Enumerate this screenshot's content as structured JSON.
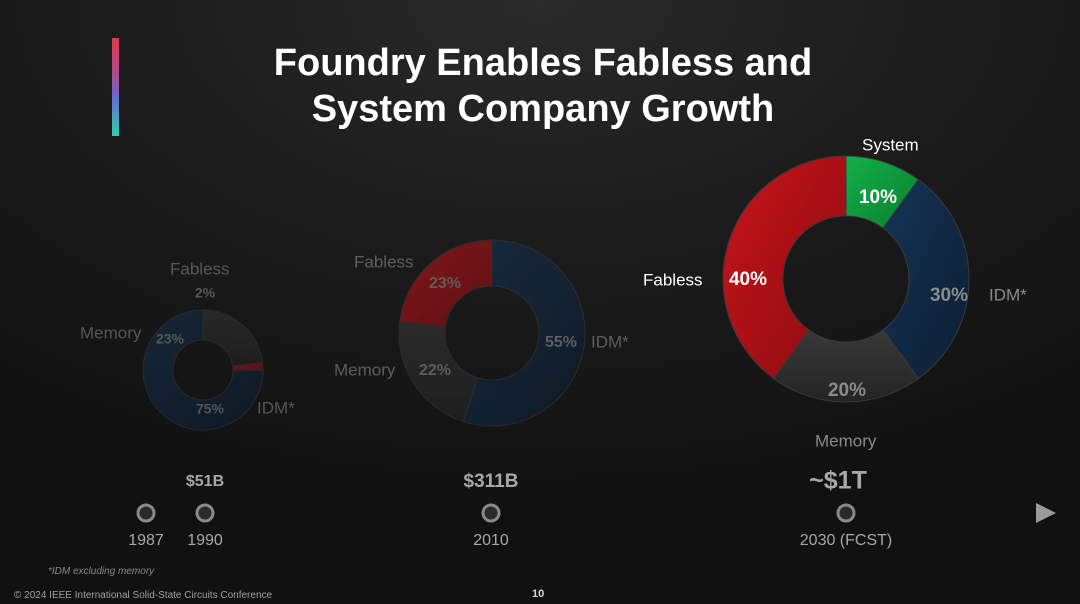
{
  "title": {
    "line1": "Foundry Enables Fabless and",
    "line2": "System Company Growth"
  },
  "chart_data": {
    "type": "pie",
    "subtype": "donut",
    "title": "Foundry Enables Fabless and System Company Growth",
    "categories": [
      "IDM*",
      "Fabless",
      "Memory",
      "System"
    ],
    "colors": {
      "IDM*": "#0e2942",
      "Fabless": "#b00f14",
      "Memory": "#2e2e2e",
      "System": "#0d9a3a"
    },
    "series": [
      {
        "name": "1990",
        "market_size": "$51B",
        "slices": [
          {
            "label": "IDM*",
            "value": 75,
            "text": "75%"
          },
          {
            "label": "Memory",
            "value": 23,
            "text": "23%"
          },
          {
            "label": "Fabless",
            "value": 2,
            "text": "2%"
          }
        ]
      },
      {
        "name": "2010",
        "market_size": "$311B",
        "slices": [
          {
            "label": "IDM*",
            "value": 55,
            "text": "55%"
          },
          {
            "label": "Memory",
            "value": 22,
            "text": "22%"
          },
          {
            "label": "Fabless",
            "value": 23,
            "text": "23%"
          }
        ]
      },
      {
        "name": "2030 (FCST)",
        "market_size": "~$1T",
        "slices": [
          {
            "label": "System",
            "value": 10,
            "text": "10%"
          },
          {
            "label": "IDM*",
            "value": 30,
            "text": "30%"
          },
          {
            "label": "Memory",
            "value": 20,
            "text": "20%"
          },
          {
            "label": "Fabless",
            "value": 40,
            "text": "40%"
          }
        ]
      }
    ],
    "timeline": {
      "ticks": [
        "1987",
        "1990",
        "2010",
        "2030 (FCST)"
      ],
      "values": [
        "",
        "$51B",
        "$311B",
        "~$1T"
      ]
    }
  },
  "footnote": "*IDM excluding memory",
  "copyright": "© 2024 IEEE International Solid-State Circuits Conference",
  "page_number": "10"
}
